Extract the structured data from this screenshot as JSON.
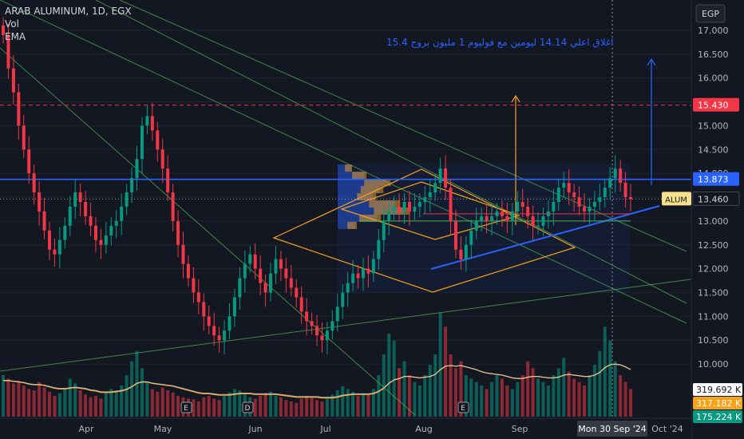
{
  "legend": {
    "symbol_line": "ARAB ALUMINUM, 1D, EGX",
    "vol_label": "Vol",
    "ema_label": "EMA"
  },
  "currency_button": "EGP",
  "annotation_text": "اغلاق اعلي 14.14 ليومين مع فوليوم 1 مليون بروح 15.4",
  "colors": {
    "background": "#131722",
    "up": "#089981",
    "down": "#f23645",
    "blue_line": "#2962ff",
    "orange": "#f7a21b",
    "green_line": "#4caf50",
    "red_dashed": "#f23645",
    "ema": "#f7a21b",
    "vol_ma": "#d1d4dc"
  },
  "chart_data": {
    "type": "candlestick",
    "title": "ARAB ALUMINUM, 1D, EGX",
    "price_axis": {
      "ticks": [
        "17.000",
        "16.500",
        "16.000",
        "15.500",
        "15.000",
        "14.500",
        "14.000",
        "13.500",
        "13.000",
        "12.500",
        "12.000",
        "11.500",
        "11.000",
        "10.500",
        "10.000"
      ],
      "tick_values": [
        17.0,
        16.5,
        16.0,
        15.5,
        15.0,
        14.5,
        14.0,
        13.5,
        13.0,
        12.5,
        12.0,
        11.5,
        11.0,
        10.5,
        10.0
      ],
      "range": [
        9.6,
        17.3
      ]
    },
    "time_axis": {
      "labels": [
        "Apr",
        "May",
        "Jun",
        "Jul",
        "Aug",
        "Sep",
        "Oct '24"
      ],
      "cursor_label": "Mon 30 Sep '24"
    },
    "price_labels": [
      {
        "text": "15.430",
        "value": 15.43,
        "kind": "red"
      },
      {
        "text": "13.873",
        "value": 13.873,
        "kind": "blue"
      },
      {
        "text": "13.460",
        "value": 13.46,
        "kind": "last",
        "tag": "ALUM"
      }
    ],
    "volume_labels": [
      "319.692 K",
      "317.182 K",
      "175.224 K"
    ],
    "horizontal_levels": [
      {
        "value": 15.43,
        "style": "dashed",
        "color": "red"
      },
      {
        "value": 13.873,
        "style": "solid",
        "color": "blue"
      },
      {
        "value": 13.46,
        "style": "dotted",
        "color": "last"
      },
      {
        "value": 13.15,
        "style": "solid",
        "color": "red"
      },
      {
        "value": 13.0,
        "style": "solid",
        "color": "green"
      }
    ],
    "series": [
      {
        "name": "Price",
        "values": [
          16.9,
          16.2,
          15.7,
          15.0,
          14.5,
          14.0,
          13.6,
          13.2,
          12.8,
          12.4,
          12.3,
          12.6,
          12.9,
          13.3,
          13.6,
          13.4,
          13.1,
          12.9,
          12.6,
          12.5,
          12.7,
          12.9,
          13.0,
          13.3,
          13.6,
          13.9,
          14.3,
          15.0,
          15.2,
          14.9,
          14.5,
          14.1,
          13.6,
          13.0,
          12.5,
          12.1,
          11.8,
          11.5,
          11.3,
          11.0,
          10.8,
          10.6,
          10.5,
          10.7,
          11.0,
          11.4,
          11.8,
          12.1,
          12.3,
          12.0,
          11.7,
          11.5,
          11.9,
          12.2,
          12.0,
          11.8,
          11.6,
          11.4,
          11.1,
          10.9,
          10.8,
          10.6,
          10.5,
          10.7,
          10.9,
          11.2,
          11.5,
          11.7,
          11.9,
          11.8,
          12.0,
          11.9,
          12.2,
          12.6,
          13.0,
          13.2,
          13.3,
          13.2,
          13.4,
          13.2,
          13.3,
          13.4,
          13.5,
          13.6,
          13.8,
          14.1,
          13.7,
          13.0,
          12.4,
          12.2,
          12.5,
          12.8,
          13.0,
          13.1,
          13.0,
          13.1,
          13.2,
          13.1,
          13.0,
          13.2,
          13.4,
          13.3,
          13.1,
          12.9,
          12.9,
          13.1,
          13.2,
          13.4,
          13.7,
          13.8,
          13.6,
          13.5,
          13.3,
          13.2,
          13.3,
          13.4,
          13.5,
          13.7,
          13.9,
          14.1,
          13.8,
          13.5,
          13.46
        ]
      },
      {
        "name": "Vol",
        "values": [
          60,
          55,
          48,
          52,
          45,
          40,
          38,
          50,
          42,
          36,
          30,
          34,
          40,
          55,
          48,
          38,
          32,
          28,
          30,
          26,
          35,
          40,
          38,
          45,
          60,
          80,
          95,
          70,
          50,
          40,
          36,
          42,
          38,
          35,
          30,
          28,
          26,
          25,
          22,
          28,
          30,
          26,
          24,
          30,
          35,
          40,
          38,
          32,
          28,
          26,
          30,
          34,
          36,
          30,
          28,
          24,
          22,
          20,
          26,
          30,
          28,
          24,
          22,
          26,
          32,
          38,
          44,
          40,
          36,
          30,
          34,
          32,
          40,
          60,
          90,
          120,
          110,
          70,
          80,
          60,
          50,
          45,
          60,
          75,
          90,
          150,
          130,
          90,
          70,
          80,
          60,
          55,
          50,
          45,
          40,
          50,
          60,
          55,
          45,
          40,
          50,
          60,
          80,
          70,
          55,
          50,
          45,
          60,
          70,
          85,
          65,
          55,
          50,
          45,
          60,
          75,
          95,
          130,
          110,
          80,
          60,
          50,
          40
        ]
      },
      {
        "name": "EMA",
        "values": [
          52,
          52,
          51,
          50,
          49,
          47,
          46,
          46,
          45,
          43,
          41,
          40,
          40,
          41,
          42,
          41,
          40,
          38,
          37,
          35,
          35,
          35,
          36,
          37,
          39,
          43,
          48,
          50,
          50,
          48,
          47,
          46,
          45,
          44,
          42,
          40,
          38,
          36,
          34,
          33,
          33,
          32,
          31,
          31,
          31,
          32,
          33,
          33,
          33,
          32,
          32,
          32,
          32,
          32,
          31,
          30,
          29,
          28,
          28,
          28,
          28,
          28,
          27,
          27,
          27,
          28,
          30,
          31,
          32,
          32,
          32,
          32,
          33,
          36,
          41,
          48,
          53,
          55,
          58,
          58,
          57,
          56,
          57,
          58,
          61,
          68,
          73,
          74,
          73,
          74,
          72,
          70,
          68,
          65,
          63,
          62,
          61,
          60,
          58,
          56,
          55,
          55,
          57,
          58,
          58,
          57,
          56,
          56,
          57,
          60,
          61,
          60,
          59,
          58,
          58,
          60,
          64,
          71,
          75,
          76,
          75,
          72,
          68
        ]
      }
    ]
  }
}
